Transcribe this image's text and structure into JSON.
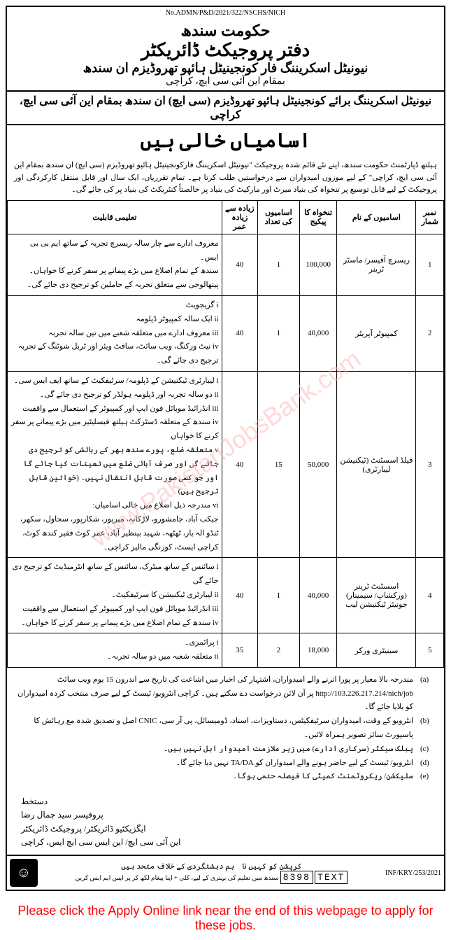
{
  "ref_number": "No.ADMN/P&D/2021/322/NSCHS/NICH",
  "header": {
    "government": "حکومت سندھ",
    "office": "دفتر پروجیکٹ ڈائریکٹر",
    "project": "نیونیٹل اسکریننگ فار کونجینیٹل ہائپو تھروڈیزم ان سندھ",
    "location": "بمقام این آئی سی ایچ، کراچی"
  },
  "subtitle": "نیونیٹل اسکریننگ برائے کونجینیٹل ہائپو تھروڈیزم (سی ایچ) ان سندھ بمقام این آئی سی ایچ، کراچی",
  "vacancies_title": "اسامیاں خالی ہیں",
  "intro": "ہیلتھ ڈپارٹمنٹ حکومت سندھ، اپنے نئے قائم شدہ پروجیکٹ \"نیونیٹل اسکریننگ فارکونجینیٹل ہائپو تھروڈیزم (سی ایچ) ان سندھ بمقام این آئی سی ایچ، کراچی\" کے لیے موزوں امیدواران سے درخواستیں طلب کرتا ہے۔ تمام تقرریاں، ایک سال اور قابل منتقل کارکردگی اور پروجیکٹ کے لیے قابل توسیع پر تنخواہ کی بنیاد میرٹ اور مارکیٹ کی بنیاد پر خالصتاً کنٹریکٹ کی بنیاد پر کی جائے گی۔",
  "table": {
    "headers": {
      "sno": "نمبر شمار",
      "post": "اسامیوں کے نام",
      "salary": "تنخواہ کا پیکیج",
      "vacancies": "اسامیوں کی تعداد",
      "age": "زیادہ سے زیادہ عمر",
      "qualification": "تعلیمی قابلیت"
    },
    "rows": [
      {
        "sno": "1",
        "post": "ریسرچ آفیسر/ ماسٹر ٹرینر",
        "salary": "100,000",
        "vacancies": "1",
        "age": "40",
        "qualification": "معروف ادارے سے چار سالہ ریسرچ تجربہ کے ساتھ ایم بی بی ایس۔\nسندھ کے تمام اضلاع میں بڑے پیمانے پر سفر کرنے کا خواہاں۔\nپیتھالوجی سے متعلق تجربہ کے حاملین کو ترجیح دی جائے گی۔"
      },
      {
        "sno": "2",
        "post": "کمپیوٹر آپریٹر",
        "salary": "40,000",
        "vacancies": "1",
        "age": "40",
        "qualification": "i گریجویٹ\nii ایک سالہ کمپیوٹر ڈپلومہ\niii معروف ادارے میں متعلقہ شعبے میں تین سالہ تجربہ\niv نیٹ ورکنگ، ویب سائٹ، سافٹ ویئر اور ٹربل شوٹنگ کے تجربہ ترجیح دی جائے گی۔"
      },
      {
        "sno": "3",
        "post": "فیلڈ اسسٹنٹ (ٹیکنیشن لیبارٹری)",
        "salary": "50,000",
        "vacancies": "15",
        "age": "40",
        "qualification": "i لیبارٹری ٹیکنیشن کے ڈپلومہ/ سرٹیفکیٹ کے ساتھ ایف ایس سی۔\nii دو سالہ تجربہ اور ڈپلومہ ہولڈر کو ترجیح دی جائے گی۔\niii انڈرائیڈ موبائل فون ایپ اور کمپیوٹر کے استعمال سے واقفیت\niv سندھ کے متعلقہ ڈسٹرکٹ ہیلتھ فیسلیٹیز میں بڑے پیمانے پر سفر کرنے کا خواہاں\nv متعلقہ ضلع، پورے سندھ بھر کے رہائشی کو ترجیح دی جائے گی اور صرف آبائی ضلع میں تعینات کیا جائے گا اور جو کسی صورت قابل انتقال نہیں۔ (خواتین قابل ترجیح ہیں)\nvi مندرجہ ذیل اضلاع میں خالی اسامیاں:\nجیکب آباد، جامشورو، لاڑکانہ، میرپور، شکارپور، سجاول، سکھر، ٹنڈو الہ یار، ٹھٹھہ، شہید بینظیر آباد، عمر کوٹ فقیر کندھ کوٹ، کراچی ایسٹ، کورنگی مالیر کراچی۔"
      },
      {
        "sno": "4",
        "post": "اسسٹنٹ ٹرینر (ورکشاپ/ سیمینار) جونیئر ٹیکنیشن لیب",
        "salary": "40,000",
        "vacancies": "1",
        "age": "40",
        "qualification": "i سائنس کے ساتھ میٹرک، سائنس کے ساتھ انٹرمیڈیٹ کو ترجیح دی جائے گی\nii لیبارٹری ٹیکنیشن کا سرٹیفکیٹ۔\niii انڈرائیڈ موبائل فون ایپ اور کمپیوٹر کے استعمال سے واقفیت\niv سندھ کے تمام اضلاع میں بڑے پیمانے پر سفر کرنے کا خواہاں۔"
      },
      {
        "sno": "5",
        "post": "سینیٹری ورکر",
        "salary": "18,000",
        "vacancies": "2",
        "age": "35",
        "qualification": "i پرائمری۔\nii متعلقہ شعبہ میں دو سالہ تجربہ۔"
      }
    ]
  },
  "notes": [
    {
      "label": "(a)",
      "text": "مندرجہ بالا معیار پر پورا اترنے والے امیدواران، اشتہار کی اخبار میں اشاعت کی تاریخ سے اندرون 15 یوم ویب سائٹ http://103.226.217.214/nich/job پر آن لائن درخواست دے سکتے ہیں۔ کراچی انٹرویو/ ٹیسٹ کے لیے صرف منتخب کردہ امیدواران کو بلایا جائے گا۔"
    },
    {
      "label": "(b)",
      "text": "انٹرویو کے وقت، امیدواران سرٹیفکیٹس، دستاویزات، اسناد، ڈومیسائل، پی آر سی، CNIC اصل و تصدیق شدہ مع رہائش کا پاسپورٹ سائز تصویر ہمراہ لائیں۔"
    },
    {
      "label": "(c)",
      "text": "پبلک سیکٹر (سرکاری ادارے) میں زیر ملازمت امیدوار اہل نہیں ہیں۔"
    },
    {
      "label": "(d)",
      "text": "انٹرویو/ ٹیسٹ کے لیے حاضر ہونے والے امیدواران کو TA/DA نہیں دیا جائے گا۔"
    },
    {
      "label": "(e)",
      "text": "سلیکشن/ ریکروٹمنٹ کمیٹی کا فیصلہ حتمی ہوگا۔"
    }
  ],
  "signature": {
    "label": "دستخط",
    "name": "پروفیسر سید جمال رضا",
    "designation": "ایگزیکٹیو ڈائریکٹر/ پروجیکٹ ڈائریکٹر",
    "institution": "این آئی سی ایچ/ این ایس سی ایچ ایس، کراچی"
  },
  "footer": {
    "anti_corruption": "کرپشن کو کہیں نا",
    "united": "ہم دہشتگردی کے خلاف متحد ہیں",
    "sms_text": "TEXT",
    "sms_number": "8398",
    "sms_instruction": "سندھ میں تعلیم کی بہتری کے لیے، کلی + اپنا پیغام لکھ کر پر ایس ایم ایس کریں",
    "inf_number": "INF/KRY/253/2021"
  },
  "watermark": "www.PakistanJobsBank.com",
  "apply_text": "Please click the Apply Online link near the end of this webpage to apply for these jobs."
}
